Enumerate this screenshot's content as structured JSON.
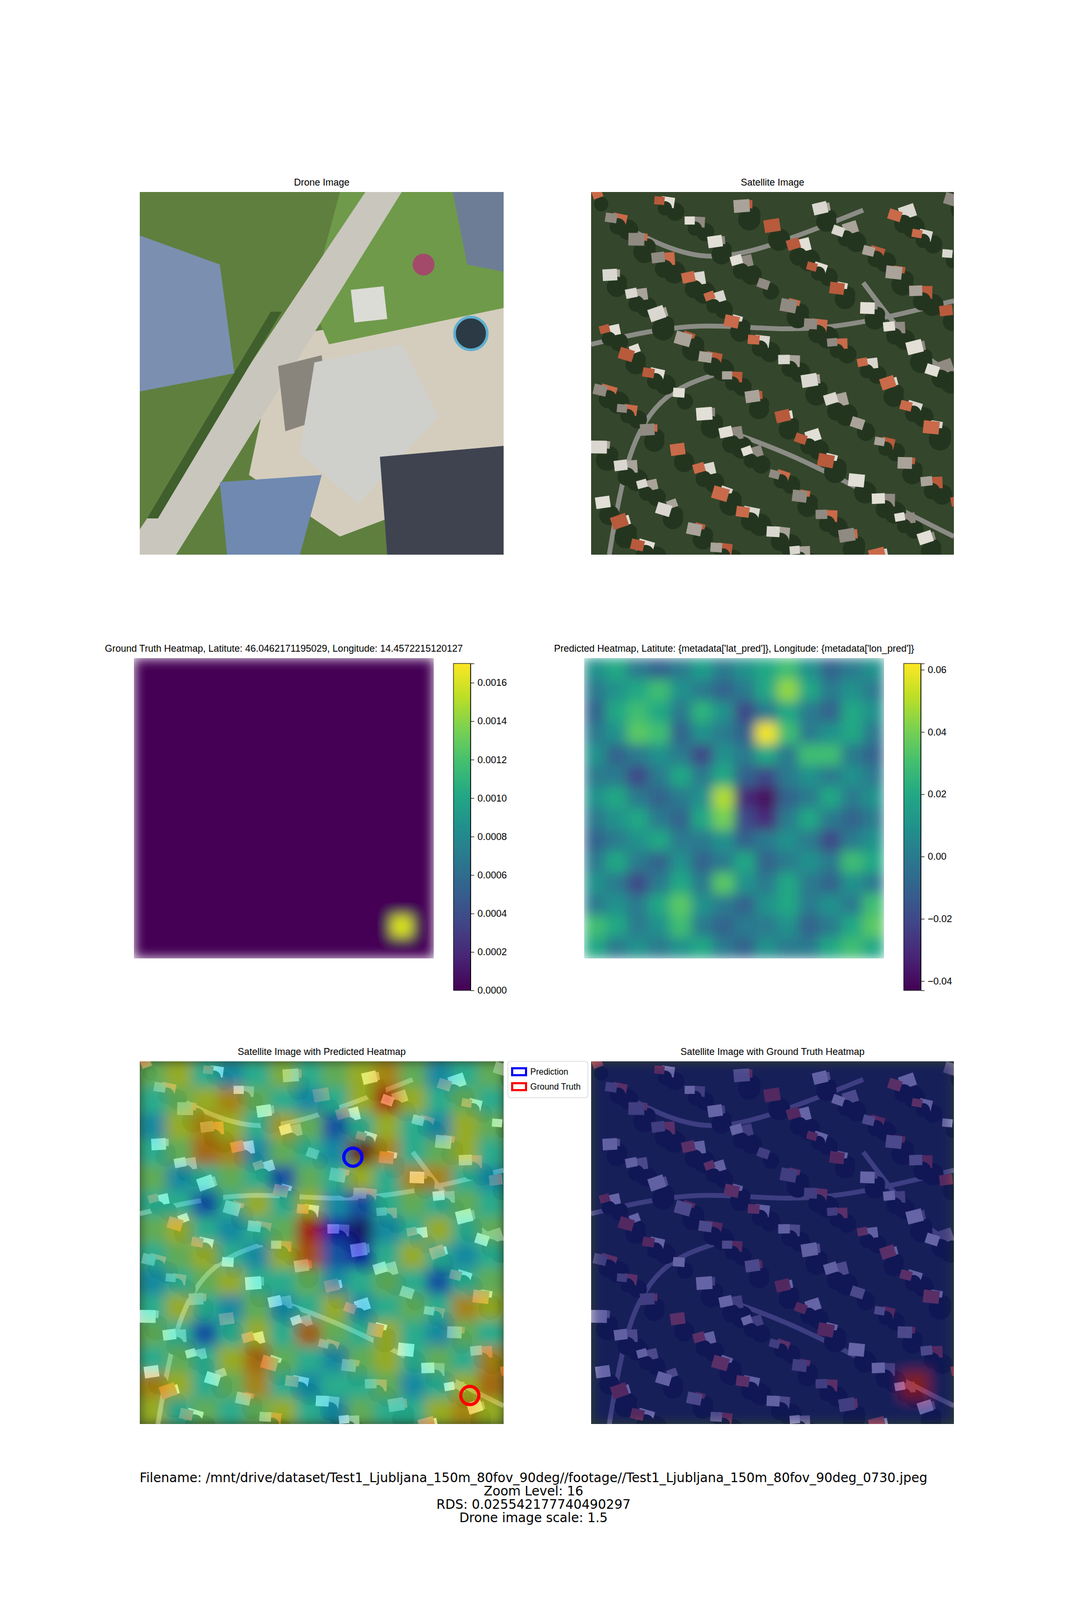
{
  "chart_data": [
    {
      "type": "image",
      "title": "Drone Image"
    },
    {
      "type": "image",
      "title": "Satellite Image"
    },
    {
      "type": "heatmap",
      "title": "Ground Truth Heatmap, Latitute: 46.0462171195029, Longitude: 14.4572215120127",
      "color": "viridis",
      "tick_labels": false,
      "cells": [
        [
          0,
          0,
          0,
          0,
          0,
          0,
          0,
          0,
          0,
          0,
          0,
          0,
          0,
          0
        ],
        [
          0,
          0,
          0,
          0,
          0,
          0,
          0,
          0,
          0,
          0,
          0,
          0,
          0,
          0
        ],
        [
          0,
          0,
          0,
          0,
          0,
          0,
          0,
          0,
          0,
          0,
          0,
          0,
          0,
          0
        ],
        [
          0,
          0,
          0,
          0,
          0,
          0,
          0,
          0,
          0,
          0,
          0,
          0,
          0,
          0
        ],
        [
          0,
          0,
          0,
          0,
          0,
          0,
          0,
          0,
          0,
          0,
          0,
          0,
          0,
          0
        ],
        [
          0,
          0,
          0,
          0,
          0,
          0,
          0,
          0,
          0,
          0,
          0,
          0,
          0,
          0
        ],
        [
          0,
          0,
          0,
          0,
          0,
          0,
          0,
          0,
          0,
          0,
          0,
          0,
          0,
          0
        ],
        [
          0,
          0,
          0,
          0,
          0,
          0,
          0,
          0,
          0,
          0,
          0,
          0,
          0,
          0
        ],
        [
          0,
          0,
          0,
          0,
          0,
          0,
          0,
          0,
          0,
          0,
          0,
          0,
          0,
          0
        ],
        [
          0,
          0,
          0,
          0,
          0,
          0,
          0,
          0,
          0,
          0,
          0,
          0,
          0,
          0
        ],
        [
          0,
          0,
          0,
          0,
          0,
          0,
          0,
          0,
          0,
          0,
          0,
          0,
          0,
          0
        ],
        [
          0,
          0,
          0,
          0,
          0,
          0,
          0,
          0,
          0,
          0,
          0,
          0,
          0,
          0
        ],
        [
          0,
          0,
          0,
          0,
          0,
          0,
          0,
          0,
          0,
          0,
          0,
          0,
          0.0016,
          0
        ],
        [
          0,
          0,
          0,
          0,
          0,
          0,
          0,
          0,
          0,
          0,
          0,
          0,
          0,
          0
        ]
      ],
      "colorbar": {
        "range": [
          0,
          0.0017
        ],
        "ticks": [
          {
            "value": 0,
            "label": "0.0000"
          },
          {
            "value": 0.0002,
            "label": "0.0002"
          },
          {
            "value": 0.0004,
            "label": "0.0004"
          },
          {
            "value": 0.0006,
            "label": "0.0006"
          },
          {
            "value": 0.0008,
            "label": "0.0008"
          },
          {
            "value": 0.001,
            "label": "0.0010"
          },
          {
            "value": 0.0012,
            "label": "0.0012"
          },
          {
            "value": 0.0014,
            "label": "0.0014"
          },
          {
            "value": 0.0016,
            "label": "0.0016"
          }
        ]
      }
    },
    {
      "type": "heatmap",
      "title": "Predicted Heatmap, Latitute: {metadata['lat_pred']}, Longitude: {metadata['lon_pred']}",
      "color": "viridis",
      "tick_labels": false,
      "cells": [
        [
          0.01,
          0.02,
          0.0,
          -0.01,
          0.0,
          0.015,
          0.0,
          0.01,
          0.02,
          0.03,
          0.01,
          -0.01,
          0.0,
          0.01
        ],
        [
          0.0,
          0.01,
          0.02,
          0.03,
          0.01,
          0.0,
          -0.01,
          0.0,
          0.02,
          0.045,
          0.02,
          0.0,
          0.01,
          0.0
        ],
        [
          -0.01,
          0.02,
          0.03,
          0.02,
          0.0,
          0.025,
          0.01,
          -0.02,
          0.0,
          0.02,
          0.0,
          -0.01,
          0.02,
          0.01
        ],
        [
          0.0,
          0.01,
          0.035,
          0.03,
          -0.01,
          0.01,
          0.0,
          -0.01,
          0.06,
          0.03,
          0.0,
          0.01,
          0.02,
          0.0
        ],
        [
          0.01,
          -0.01,
          0.0,
          0.01,
          0.0,
          -0.02,
          0.01,
          0.0,
          0.02,
          0.0,
          0.03,
          0.03,
          0.0,
          -0.01
        ],
        [
          0.0,
          0.0,
          -0.02,
          0.0,
          0.02,
          0.0,
          0.02,
          -0.01,
          -0.02,
          0.0,
          0.01,
          0.0,
          0.01,
          0.0
        ],
        [
          0.01,
          0.02,
          0.0,
          -0.01,
          0.0,
          0.01,
          0.05,
          -0.03,
          -0.04,
          -0.01,
          0.0,
          0.02,
          0.0,
          0.01
        ],
        [
          0.0,
          0.01,
          0.02,
          0.0,
          -0.01,
          0.02,
          0.04,
          -0.02,
          -0.03,
          0.0,
          0.02,
          0.0,
          -0.01,
          0.0
        ],
        [
          -0.01,
          0.0,
          0.01,
          0.02,
          0.0,
          0.0,
          0.01,
          -0.01,
          0.0,
          0.01,
          0.0,
          -0.02,
          0.0,
          0.01
        ],
        [
          0.0,
          0.02,
          0.0,
          -0.01,
          0.01,
          -0.01,
          0.0,
          0.02,
          -0.01,
          0.0,
          0.01,
          0.0,
          0.03,
          0.02
        ],
        [
          0.01,
          0.0,
          -0.02,
          0.0,
          0.02,
          0.0,
          0.035,
          0.01,
          0.0,
          0.02,
          0.0,
          -0.01,
          0.01,
          0.0
        ],
        [
          0.0,
          0.01,
          0.0,
          0.02,
          0.035,
          0.01,
          0.0,
          -0.01,
          0.01,
          0.02,
          0.0,
          0.01,
          0.0,
          0.03
        ],
        [
          0.03,
          0.02,
          0.0,
          0.01,
          0.03,
          0.0,
          -0.01,
          0.0,
          0.0,
          0.01,
          -0.01,
          0.0,
          0.02,
          0.035
        ],
        [
          0.02,
          0.0,
          0.01,
          0.0,
          0.01,
          0.02,
          0.0,
          -0.01,
          0.01,
          0.0,
          0.0,
          0.02,
          0.03,
          0.02
        ]
      ],
      "colorbar": {
        "range": [
          -0.043,
          0.062
        ],
        "ticks": [
          {
            "value": -0.04,
            "label": "−0.04"
          },
          {
            "value": -0.02,
            "label": "−0.02"
          },
          {
            "value": 0,
            "label": "0.00"
          },
          {
            "value": 0.02,
            "label": "0.02"
          },
          {
            "value": 0.04,
            "label": "0.04"
          },
          {
            "value": 0.06,
            "label": "0.06"
          }
        ]
      }
    },
    {
      "type": "overlay",
      "title": "Satellite Image with Predicted Heatmap",
      "color": "jet",
      "tick_labels": false,
      "legend": "upper right",
      "xlim": [
        0,
        14
      ],
      "ylim": [
        14,
        0
      ],
      "series": [
        {
          "name": "Prediction",
          "color": "blue",
          "marker": "circle",
          "x": 8.2,
          "y": 3.7
        },
        {
          "name": "Ground Truth",
          "color": "red",
          "marker": "circle",
          "x": 12.7,
          "y": 12.9
        }
      ]
    },
    {
      "type": "overlay",
      "title": "Satellite Image with Ground Truth Heatmap",
      "color": "jet",
      "tick_labels": false
    }
  ],
  "footer": [
    "Filename: /mnt/drive/dataset/Test1_Ljubljana_150m_80fov_90deg//footage//Test1_Ljubljana_150m_80fov_90deg_0730.jpeg",
    "Zoom Level: 16",
    "RDS: 0.025542177740490297",
    "Drone image scale: 1.5"
  ]
}
